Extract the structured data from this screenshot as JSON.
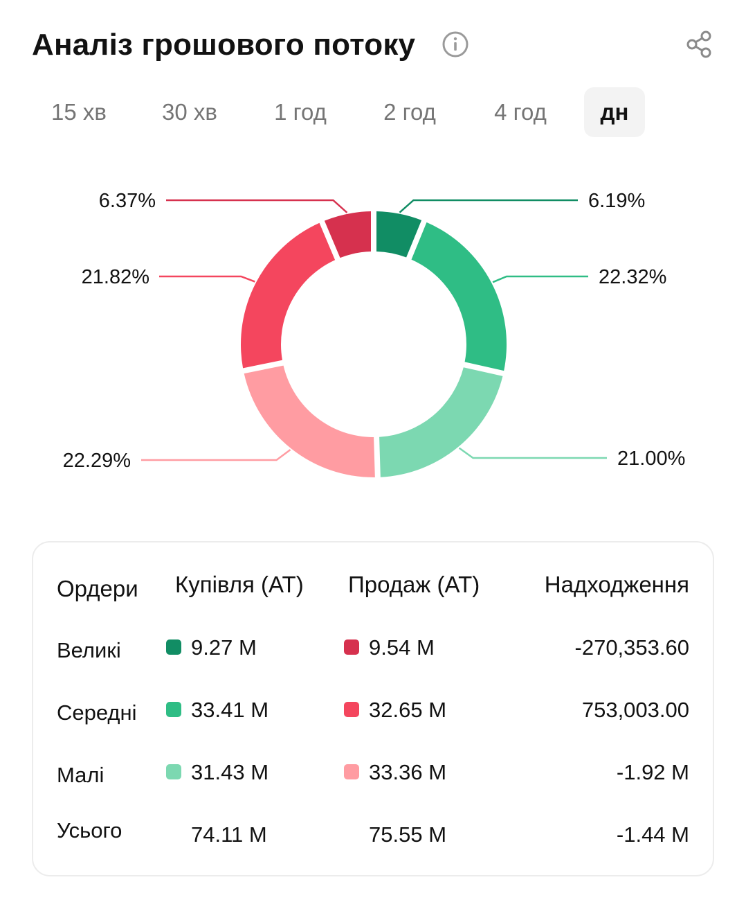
{
  "header": {
    "title": "Аналіз грошового потоку",
    "info_icon": "info-icon",
    "share_icon": "share-icon"
  },
  "tabs": [
    {
      "label": "15 хв",
      "active": false
    },
    {
      "label": "30 хв",
      "active": false
    },
    {
      "label": "1 год",
      "active": false
    },
    {
      "label": "2 год",
      "active": false
    },
    {
      "label": "4 год",
      "active": false
    },
    {
      "label": "дн",
      "active": true
    }
  ],
  "chart_data": {
    "type": "pie",
    "donut": true,
    "slices": [
      {
        "label": "6.19%",
        "value": 6.19,
        "color": "#118d64"
      },
      {
        "label": "22.32%",
        "value": 22.32,
        "color": "#2fbd85"
      },
      {
        "label": "21.00%",
        "value": 21.0,
        "color": "#7cd8b1"
      },
      {
        "label": "22.29%",
        "value": 22.29,
        "color": "#ff9ca2"
      },
      {
        "label": "21.82%",
        "value": 21.82,
        "color": "#f4465e"
      },
      {
        "label": "6.37%",
        "value": 6.37,
        "color": "#d6314e"
      }
    ]
  },
  "table": {
    "headers": {
      "orders": "Ордери",
      "buy": "Купівля (AT)",
      "sell": "Продаж (AT)",
      "net": "Надходження"
    },
    "rows": [
      {
        "label": "Великі",
        "buy": "9.27 M",
        "sell": "9.54 M",
        "net": "-270,353.60",
        "buy_color": "#118d64",
        "sell_color": "#d6314e"
      },
      {
        "label": "Середні",
        "buy": "33.41 M",
        "sell": "32.65 M",
        "net": "753,003.00",
        "buy_color": "#2fbd85",
        "sell_color": "#f4465e"
      },
      {
        "label": "Малі",
        "buy": "31.43 M",
        "sell": "33.36 M",
        "net": "-1.92 M",
        "buy_color": "#7cd8b1",
        "sell_color": "#ff9ca2"
      },
      {
        "label": "Усього",
        "buy": "74.11 M",
        "sell": "75.55 M",
        "net": "-1.44 M"
      }
    ]
  }
}
